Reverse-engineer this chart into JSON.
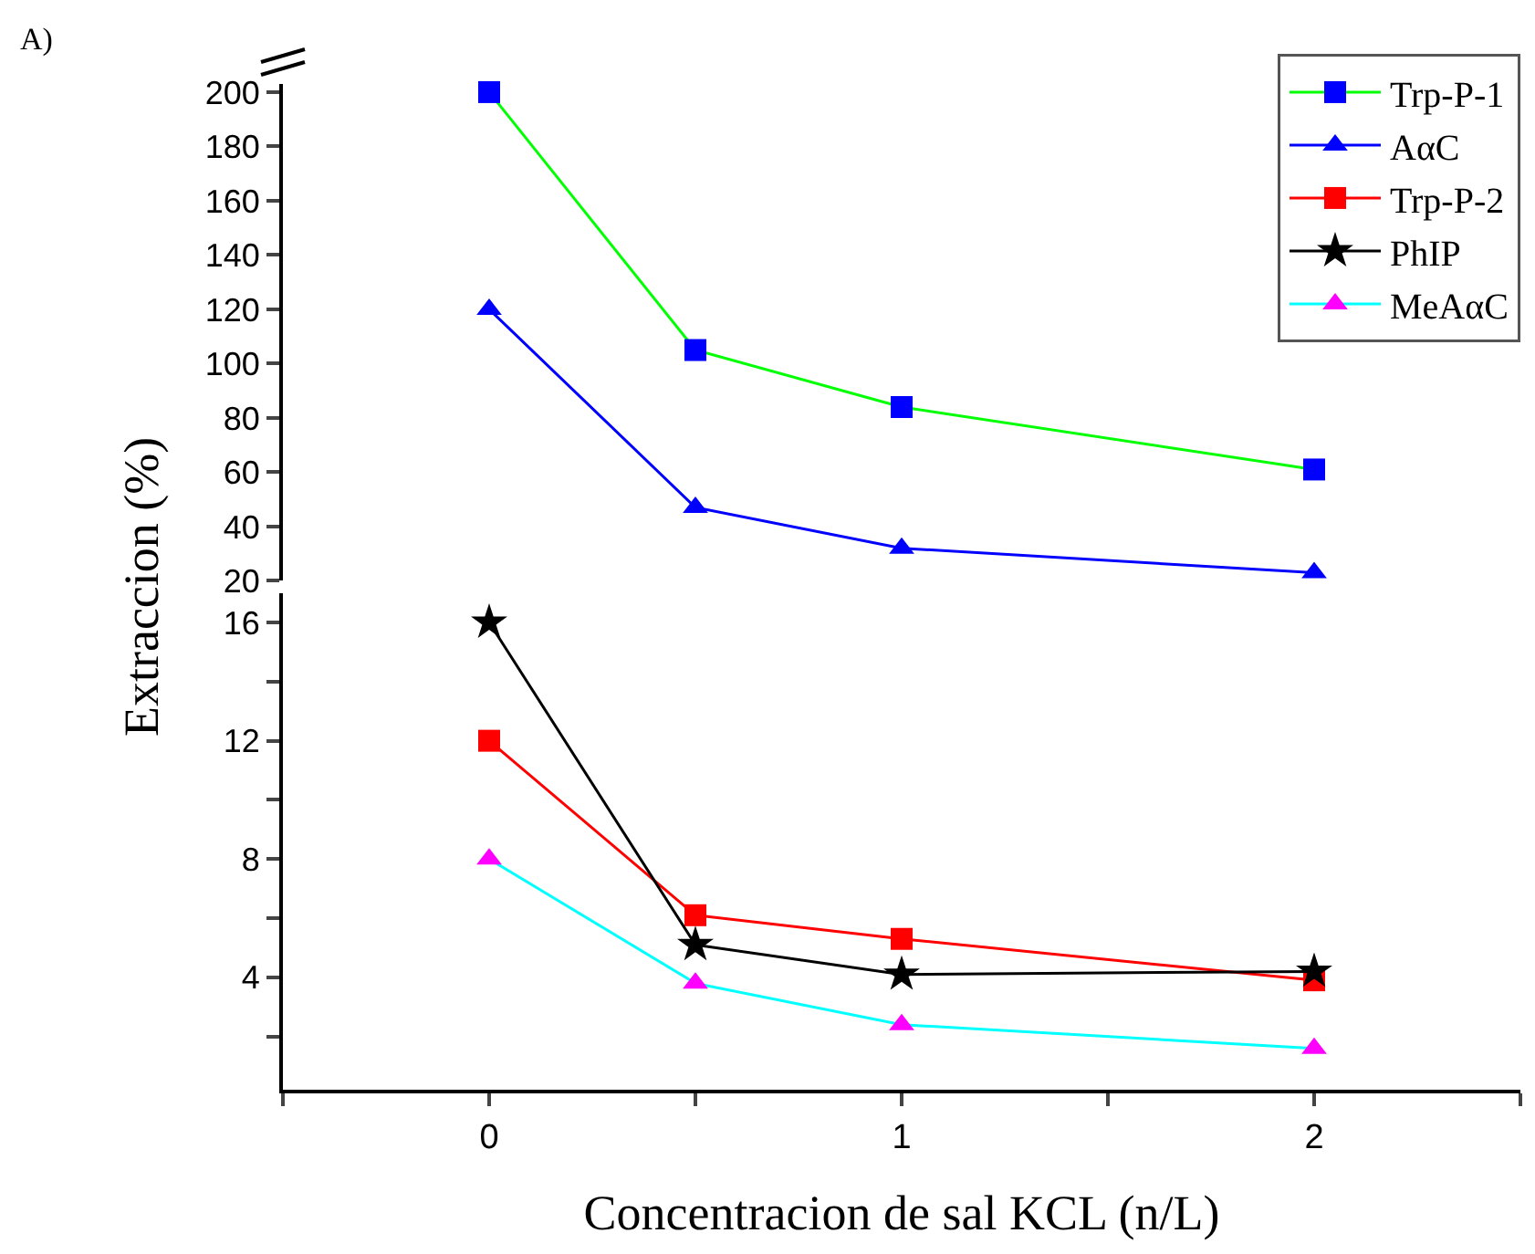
{
  "chart_data": [
    {
      "type": "line",
      "title": "A)",
      "ylabel": "Extraccion (%)",
      "x": [
        0,
        0.5,
        1,
        2
      ],
      "ylim": [
        20,
        203
      ],
      "yticks": [
        20,
        40,
        60,
        80,
        100,
        120,
        140,
        160,
        180,
        200
      ],
      "tick_labels": "y",
      "grid": false,
      "legend": "top right",
      "line_style": "solid",
      "series": [
        {
          "name": "Trp-P-1",
          "color": "#00ff00",
          "colors": [
            "#0000ff",
            "#0000ff",
            "#0000ff",
            "#0000ff"
          ],
          "marker": "square",
          "values": [
            200,
            105,
            84,
            61
          ]
        },
        {
          "name": "AαC",
          "color": "#0000ff",
          "colors": [
            "#0000ff",
            "#0000ff",
            "#0000ff",
            "#0000ff"
          ],
          "marker": "triangle",
          "values": [
            120,
            47,
            32,
            23
          ]
        }
      ]
    },
    {
      "type": "line",
      "xlabel": "Concentracion de sal KCL (n/L)",
      "x": [
        0,
        0.5,
        1,
        2
      ],
      "xlim": [
        -0.5,
        2.5
      ],
      "xticks": [
        {
          "value": -0.5,
          "label": null
        },
        0,
        {
          "value": 0.5,
          "label": null
        },
        1,
        {
          "value": 1.5,
          "label": null
        },
        2,
        {
          "value": 2.5,
          "label": null
        }
      ],
      "ylim": [
        0.2,
        17
      ],
      "yticks": [
        {
          "value": 2,
          "label": null
        },
        4,
        {
          "value": 6,
          "label": null
        },
        8,
        {
          "value": 10,
          "label": null
        },
        12,
        {
          "value": 14,
          "label": null
        },
        16
      ],
      "grid": false,
      "legend": "top right",
      "line_style": "solid",
      "series": [
        {
          "name": "Trp-P-2",
          "color": "#ff0000",
          "colors": [
            "#ff0000",
            "#ff0000",
            "#ff0000",
            "#ff0000"
          ],
          "marker": "square",
          "values": [
            12,
            6.1,
            5.3,
            3.9
          ]
        },
        {
          "name": "PhIP",
          "color": "#000000",
          "colors": [
            "#000000",
            "#000000",
            "#000000",
            "#000000"
          ],
          "marker": "star",
          "values": [
            16,
            5.1,
            4.1,
            4.2
          ]
        },
        {
          "name": "MeAαC",
          "color": "#00ffff",
          "colors": [
            "#ff00ff",
            "#ff00ff",
            "#ff00ff",
            "#ff00ff"
          ],
          "marker": "triangle",
          "values": [
            8,
            3.8,
            2.4,
            1.6
          ]
        }
      ]
    }
  ]
}
